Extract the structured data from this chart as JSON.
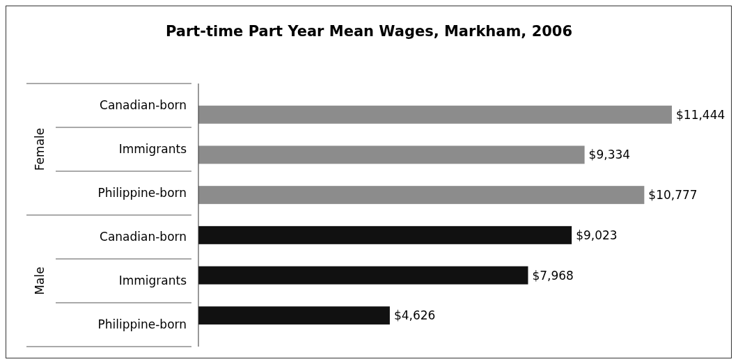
{
  "chart_data": {
    "type": "bar",
    "orientation": "horizontal",
    "title": "Part-time Part Year Mean Wages, Markham, 2006",
    "categories": [
      "Canadian-born",
      "Immigrants",
      "Philippine-born",
      "Canadian-born",
      "Immigrants",
      "Philippine-born"
    ],
    "values": [
      11444,
      9334,
      10777,
      9023,
      7968,
      4626
    ],
    "colors": [
      "#8c8c8c",
      "#8c8c8c",
      "#8c8c8c",
      "#111111",
      "#111111",
      "#111111"
    ],
    "value_labels": [
      "$11,444",
      "$9,334",
      "$10,777",
      "$9,023",
      "$7,968",
      "$4,626"
    ],
    "annotations": [
      "Female",
      "Male"
    ]
  }
}
